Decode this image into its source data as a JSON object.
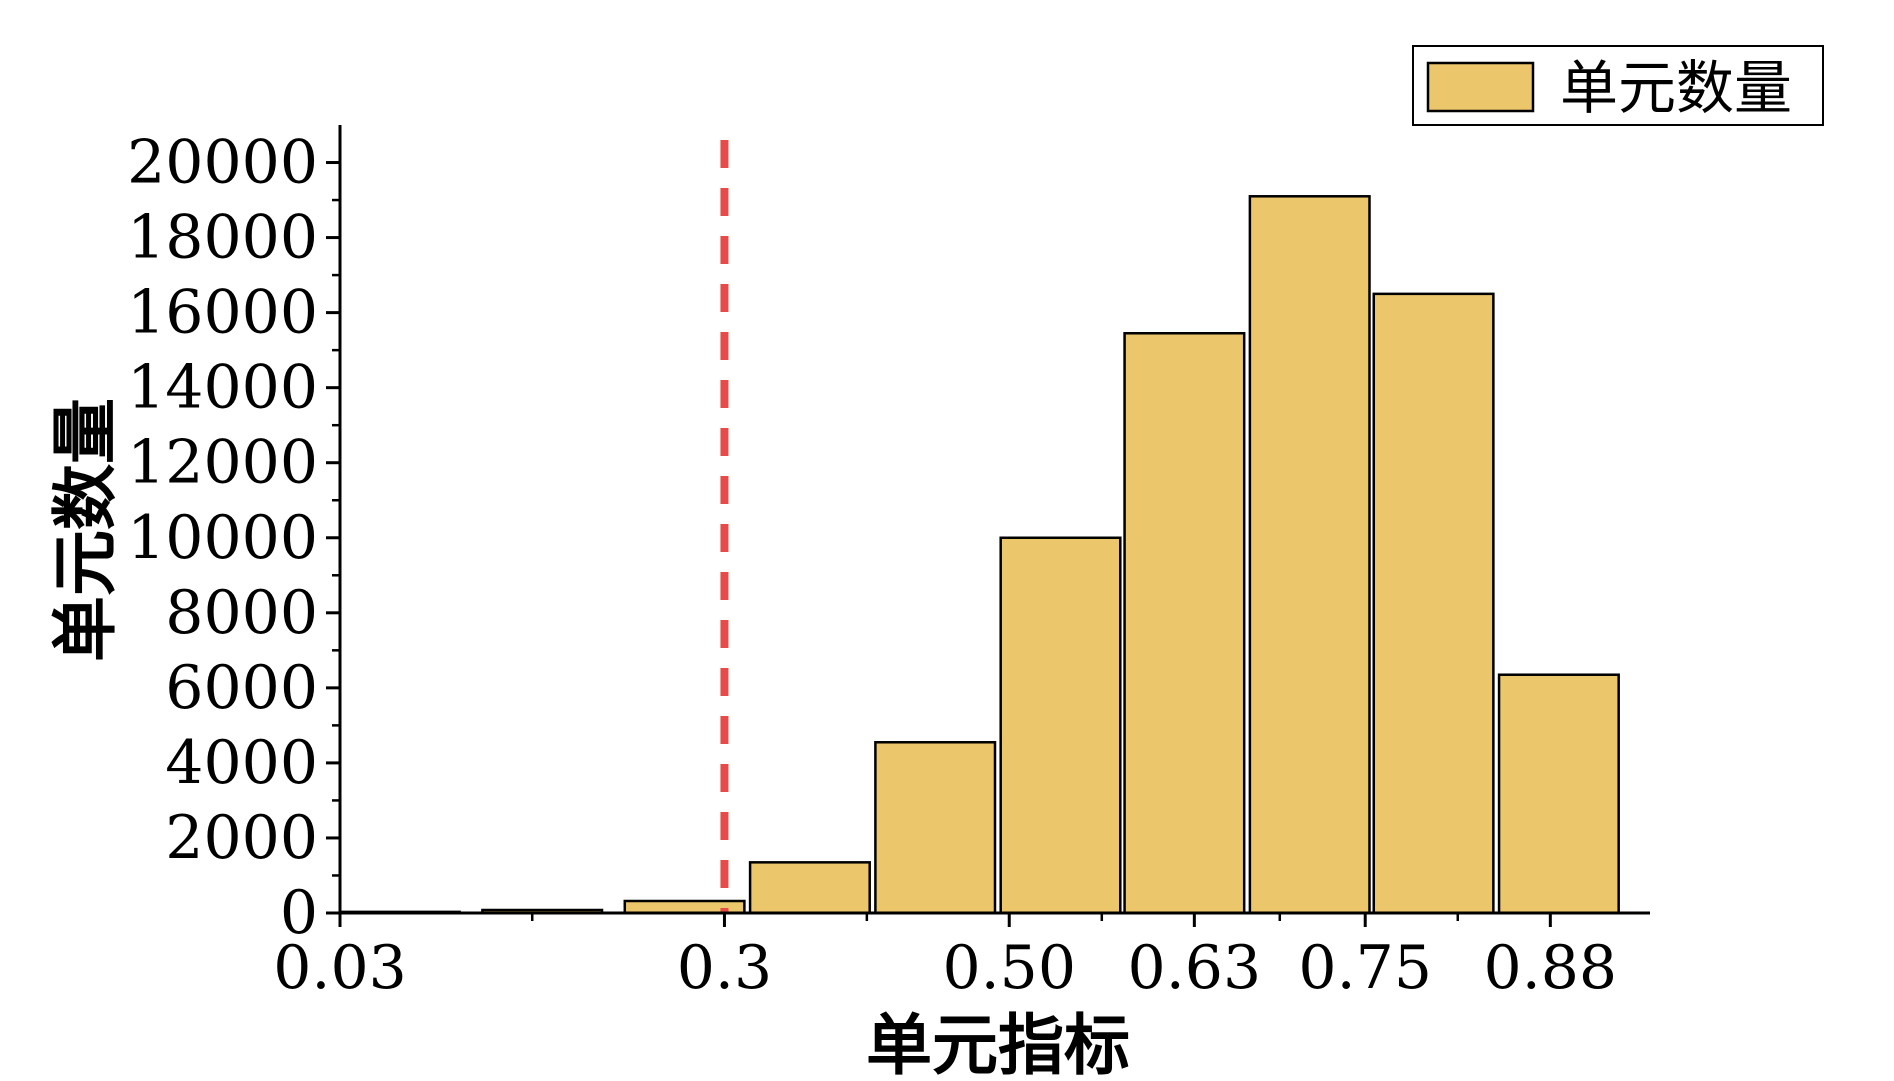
{
  "chart_data": {
    "type": "bar",
    "xlabel": "单元指标",
    "ylabel": "单元数量",
    "bars": [
      {
        "x0": 0.03,
        "x1": 0.114,
        "value": 30
      },
      {
        "x0": 0.13,
        "x1": 0.214,
        "value": 80
      },
      {
        "x0": 0.23,
        "x1": 0.314,
        "value": 320
      },
      {
        "x0": 0.318,
        "x1": 0.402,
        "value": 1350
      },
      {
        "x0": 0.406,
        "x1": 0.49,
        "value": 4550
      },
      {
        "x0": 0.494,
        "x1": 0.578,
        "value": 10000
      },
      {
        "x0": 0.581,
        "x1": 0.665,
        "value": 15450
      },
      {
        "x0": 0.669,
        "x1": 0.753,
        "value": 19100
      },
      {
        "x0": 0.756,
        "x1": 0.84,
        "value": 16500
      },
      {
        "x0": 0.844,
        "x1": 0.928,
        "value": 6350
      }
    ],
    "x_ticks": [
      {
        "value": 0.03,
        "label": "0.03"
      },
      {
        "value": 0.3,
        "label": "0.3"
      },
      {
        "value": 0.5,
        "label": "0.50"
      },
      {
        "value": 0.63,
        "label": "0.63"
      },
      {
        "value": 0.75,
        "label": "0.75"
      },
      {
        "value": 0.88,
        "label": "0.88"
      }
    ],
    "y_ticks": [
      0,
      2000,
      4000,
      6000,
      8000,
      10000,
      12000,
      14000,
      16000,
      18000,
      20000
    ],
    "y_tick_labels": [
      "0",
      "2000",
      "4000",
      "6000",
      "8000",
      "10000",
      "12000",
      "14000",
      "16000",
      "18000",
      "20000"
    ],
    "xlim": [
      0.03,
      0.95
    ],
    "ylim": [
      0,
      21000
    ],
    "reference_line": {
      "x": 0.3,
      "style": "dashed",
      "color": "#e84a4a"
    },
    "legend": {
      "label": "单元数量",
      "position": "top-right"
    },
    "bar_color": "#ecc66a",
    "edge_color": "#000000",
    "grid": false
  }
}
